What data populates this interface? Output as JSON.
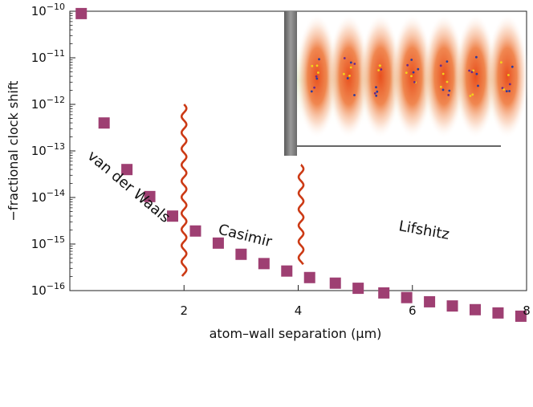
{
  "chart_data": {
    "type": "scatter",
    "title": "",
    "xlabel": "atom–wall separation  (μm)",
    "ylabel": "−fractional clock shift",
    "x_ticks": [
      2,
      4,
      6,
      8
    ],
    "y_tick_exponents": [
      -16,
      -15,
      -14,
      -13,
      -12,
      -11,
      -10
    ],
    "xlim": [
      0,
      8
    ],
    "ylim_exponent": [
      -16,
      -10
    ],
    "y_scale": "log",
    "marker": "square",
    "marker_color": "#9e3f72",
    "series": [
      {
        "name": "clock shift",
        "x": [
          0.2,
          0.6,
          1.0,
          1.4,
          1.8,
          2.2,
          2.6,
          3.0,
          3.4,
          3.8,
          4.2,
          4.65,
          5.05,
          5.5,
          5.9,
          6.3,
          6.7,
          7.1,
          7.5,
          7.9
        ],
        "y_exp": [
          -10.05,
          -12.4,
          -13.4,
          -13.98,
          -14.4,
          -14.72,
          -14.98,
          -15.22,
          -15.42,
          -15.58,
          -15.72,
          -15.84,
          -15.95,
          -16.05,
          -16.15,
          -16.24,
          -16.33,
          -16.41,
          -16.48,
          -16.55
        ]
      }
    ],
    "boundaries": [
      {
        "x": 2.0,
        "y_exp_top": -12.0,
        "y_exp_bottom": -15.7,
        "color": "#cc3a15"
      },
      {
        "x": 4.05,
        "y_exp_top": -13.3,
        "y_exp_bottom": -15.45,
        "color": "#cc3a15"
      }
    ],
    "annotations": [
      "van der Waals",
      "Casimir",
      "Lifshitz"
    ],
    "inset": {
      "description": "optical lattice of atoms near wall",
      "site_count": 7
    }
  }
}
